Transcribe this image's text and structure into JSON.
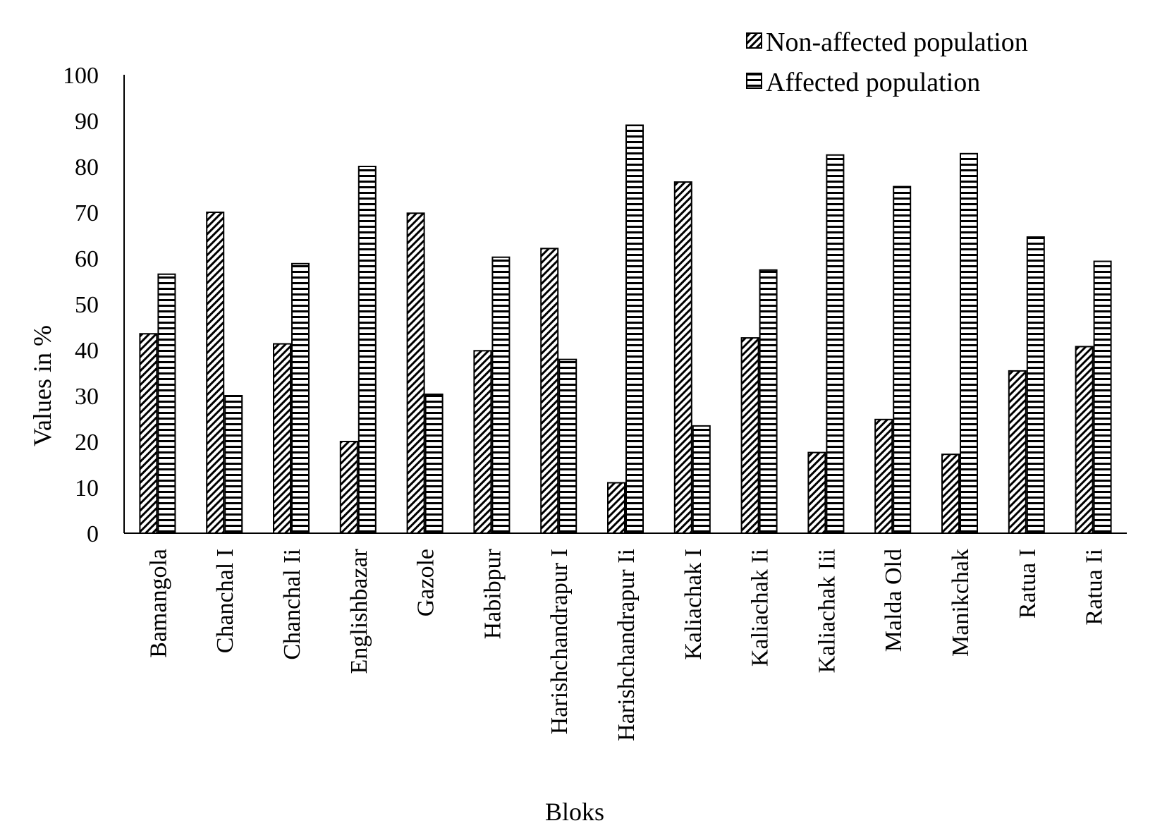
{
  "chart_data": {
    "type": "bar",
    "title": "",
    "xlabel": "Bloks",
    "ylabel": "Values  in %",
    "ylim": [
      0,
      100
    ],
    "yticks": [
      0,
      10,
      20,
      30,
      40,
      50,
      60,
      70,
      80,
      90,
      100
    ],
    "grid": false,
    "legend_position": "top-right",
    "categories": [
      "Bamangola",
      "Chanchal I",
      "Chanchal Ii",
      "Englishbazar",
      "Gazole",
      "Habibpur",
      "Harishchandrapur I",
      "Harishchandrapur Ii",
      "Kaliachak I",
      "Kaliachak Ii",
      "Kaliachak Iii",
      "Malda Old",
      "Manikchak",
      "Ratua I",
      "Ratua Ii"
    ],
    "series": [
      {
        "name": "Non-affected population",
        "pattern": "diagonal-hatch",
        "values": [
          43.5,
          70,
          41.3,
          20,
          69.8,
          39.8,
          62.1,
          11,
          76.6,
          42.6,
          17.6,
          24.8,
          17.2,
          35.4,
          40.7
        ]
      },
      {
        "name": "Affected population",
        "pattern": "horizontal-hatch",
        "values": [
          56.5,
          30,
          58.8,
          80,
          30.3,
          60.2,
          37.9,
          89,
          23.4,
          57.4,
          82.5,
          75.6,
          82.8,
          64.6,
          59.3
        ]
      }
    ]
  }
}
